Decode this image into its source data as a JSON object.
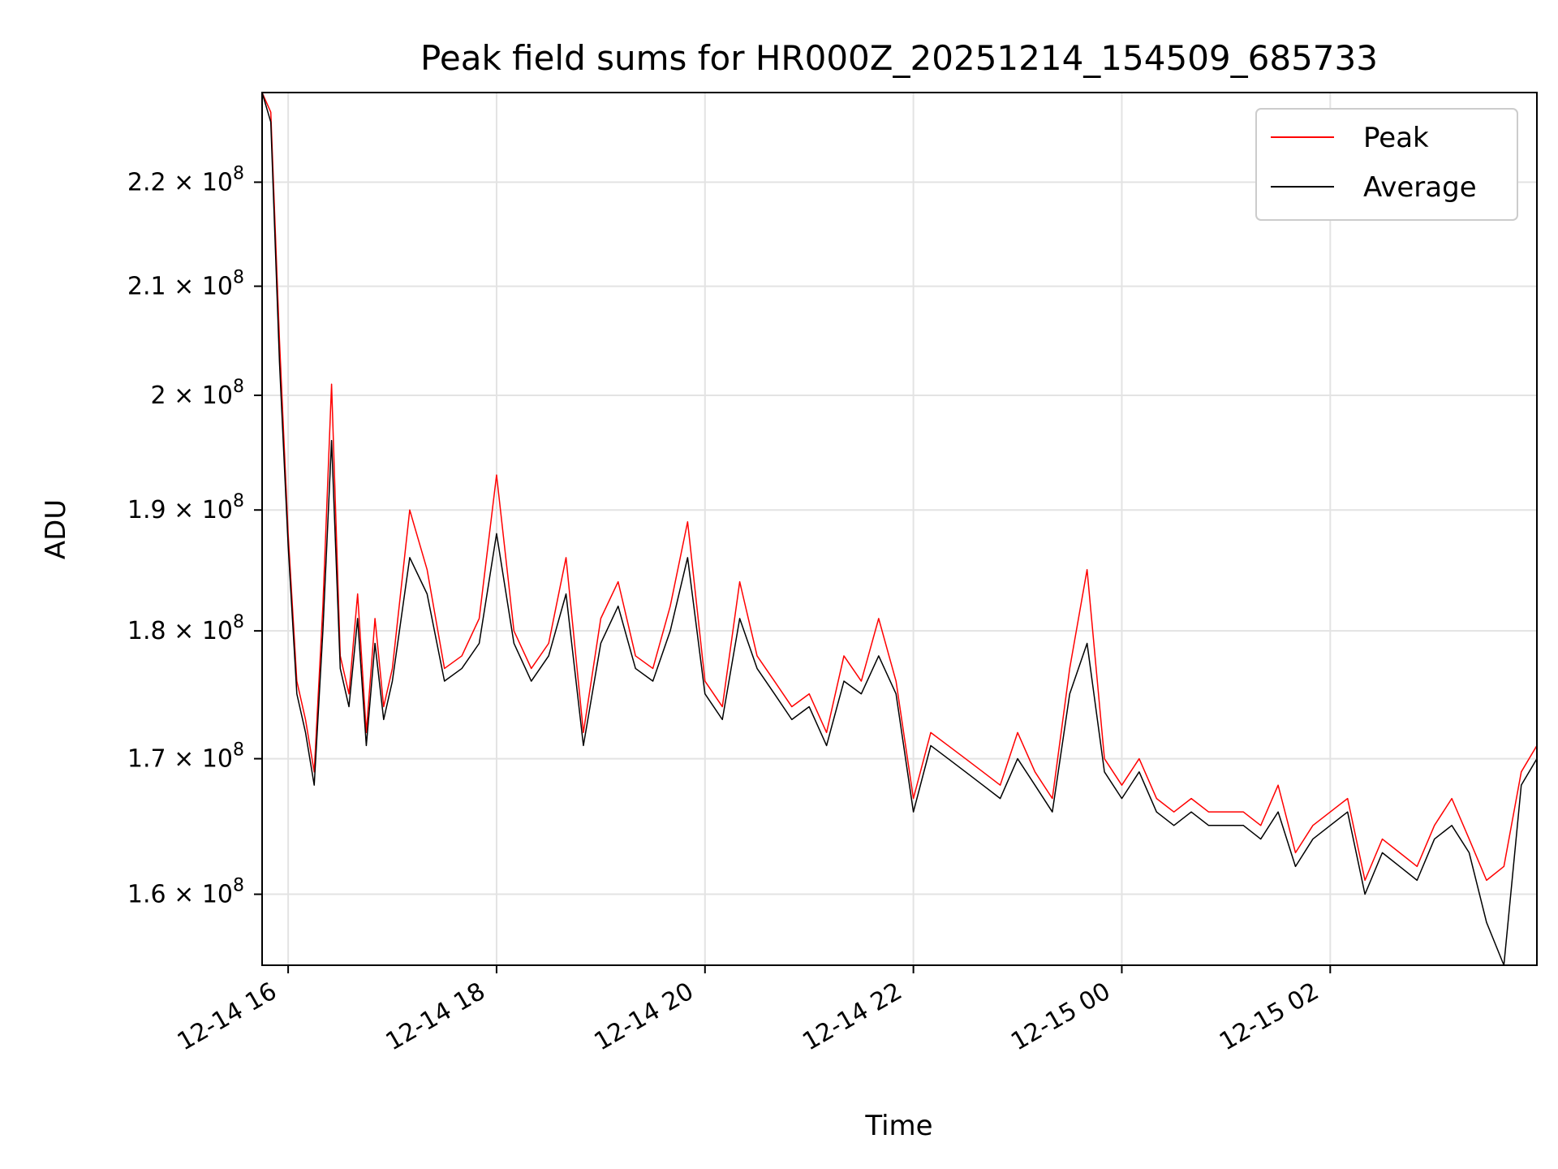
{
  "chart_data": {
    "type": "line",
    "title": "Peak field sums for HR000Z_20251214_154509_685733",
    "xlabel": "Time",
    "ylabel": "ADU",
    "x_axis": {
      "type": "time",
      "range": [
        "2025-12-14T15:45",
        "2025-12-15T03:59"
      ],
      "tick_values": [
        "2025-12-14T16:00",
        "2025-12-14T18:00",
        "2025-12-14T20:00",
        "2025-12-14T22:00",
        "2025-12-15T00:00",
        "2025-12-15T02:00"
      ],
      "tick_labels": [
        "12-14 16",
        "12-14 18",
        "12-14 20",
        "12-14 22",
        "12-15 00",
        "12-15 02"
      ]
    },
    "y_axis": {
      "scale": "log",
      "range": [
        155000000,
        229000000
      ],
      "tick_values": [
        160000000,
        170000000,
        180000000,
        190000000,
        200000000,
        210000000,
        220000000
      ],
      "tick_labels": [
        {
          "mantissa": "1.6",
          "base": "10",
          "exp": "8"
        },
        {
          "mantissa": "1.7",
          "base": "10",
          "exp": "8"
        },
        {
          "mantissa": "1.8",
          "base": "10",
          "exp": "8"
        },
        {
          "mantissa": "1.9",
          "base": "10",
          "exp": "8"
        },
        {
          "mantissa": "2",
          "base": "10",
          "exp": "8"
        },
        {
          "mantissa": "2.1",
          "base": "10",
          "exp": "8"
        },
        {
          "mantissa": "2.2",
          "base": "10",
          "exp": "8"
        }
      ]
    },
    "grid": true,
    "legend": {
      "position": "top-right",
      "entries": [
        "Peak",
        "Average"
      ]
    },
    "series": [
      {
        "name": "Peak",
        "color": "#ff0000",
        "x": [
          "2025-12-14T15:45",
          "2025-12-14T15:50",
          "2025-12-14T15:55",
          "2025-12-14T16:00",
          "2025-12-14T16:05",
          "2025-12-14T16:10",
          "2025-12-14T16:15",
          "2025-12-14T16:20",
          "2025-12-14T16:25",
          "2025-12-14T16:30",
          "2025-12-14T16:35",
          "2025-12-14T16:40",
          "2025-12-14T16:45",
          "2025-12-14T16:50",
          "2025-12-14T16:55",
          "2025-12-14T17:00",
          "2025-12-14T17:10",
          "2025-12-14T17:20",
          "2025-12-14T17:30",
          "2025-12-14T17:40",
          "2025-12-14T17:50",
          "2025-12-14T18:00",
          "2025-12-14T18:10",
          "2025-12-14T18:20",
          "2025-12-14T18:30",
          "2025-12-14T18:40",
          "2025-12-14T18:50",
          "2025-12-14T19:00",
          "2025-12-14T19:10",
          "2025-12-14T19:20",
          "2025-12-14T19:30",
          "2025-12-14T19:40",
          "2025-12-14T19:50",
          "2025-12-14T20:00",
          "2025-12-14T20:10",
          "2025-12-14T20:20",
          "2025-12-14T20:30",
          "2025-12-14T20:40",
          "2025-12-14T20:50",
          "2025-12-14T21:00",
          "2025-12-14T21:10",
          "2025-12-14T21:20",
          "2025-12-14T21:30",
          "2025-12-14T21:40",
          "2025-12-14T21:50",
          "2025-12-14T22:00",
          "2025-12-14T22:10",
          "2025-12-14T22:20",
          "2025-12-14T22:30",
          "2025-12-14T22:40",
          "2025-12-14T22:50",
          "2025-12-14T23:00",
          "2025-12-14T23:10",
          "2025-12-14T23:20",
          "2025-12-14T23:30",
          "2025-12-14T23:40",
          "2025-12-14T23:50",
          "2025-12-15T00:00",
          "2025-12-15T00:10",
          "2025-12-15T00:20",
          "2025-12-15T00:30",
          "2025-12-15T00:40",
          "2025-12-15T00:50",
          "2025-12-15T01:00",
          "2025-12-15T01:10",
          "2025-12-15T01:20",
          "2025-12-15T01:30",
          "2025-12-15T01:40",
          "2025-12-15T01:50",
          "2025-12-15T02:00",
          "2025-12-15T02:10",
          "2025-12-15T02:20",
          "2025-12-15T02:30",
          "2025-12-15T02:40",
          "2025-12-15T02:50",
          "2025-12-15T03:00",
          "2025-12-15T03:10",
          "2025-12-15T03:20",
          "2025-12-15T03:30",
          "2025-12-15T03:40",
          "2025-12-15T03:50",
          "2025-12-15T03:59"
        ],
        "y": [
          229000000,
          227000000,
          205000000,
          188000000,
          176000000,
          173000000,
          169000000,
          182000000,
          201000000,
          178000000,
          175000000,
          183000000,
          172000000,
          181000000,
          174000000,
          177000000,
          190000000,
          185000000,
          177000000,
          178000000,
          181000000,
          193000000,
          180000000,
          177000000,
          179000000,
          186000000,
          172000000,
          181000000,
          184000000,
          178000000,
          177000000,
          182000000,
          189000000,
          176000000,
          174000000,
          184000000,
          178000000,
          176000000,
          174000000,
          175000000,
          172000000,
          178000000,
          176000000,
          181000000,
          176000000,
          167000000,
          172000000,
          171000000,
          170000000,
          169000000,
          168000000,
          172000000,
          169000000,
          167000000,
          177000000,
          185000000,
          170000000,
          168000000,
          170000000,
          167000000,
          166000000,
          167000000,
          166000000,
          166000000,
          166000000,
          165000000,
          168000000,
          163000000,
          165000000,
          166000000,
          167000000,
          161000000,
          164000000,
          163000000,
          162000000,
          165000000,
          167000000,
          164000000,
          161000000,
          162000000,
          169000000,
          171000000
        ]
      },
      {
        "name": "Average",
        "color": "#000000",
        "x": [
          "2025-12-14T15:45",
          "2025-12-14T15:50",
          "2025-12-14T15:55",
          "2025-12-14T16:00",
          "2025-12-14T16:05",
          "2025-12-14T16:10",
          "2025-12-14T16:15",
          "2025-12-14T16:20",
          "2025-12-14T16:25",
          "2025-12-14T16:30",
          "2025-12-14T16:35",
          "2025-12-14T16:40",
          "2025-12-14T16:45",
          "2025-12-14T16:50",
          "2025-12-14T16:55",
          "2025-12-14T17:00",
          "2025-12-14T17:10",
          "2025-12-14T17:20",
          "2025-12-14T17:30",
          "2025-12-14T17:40",
          "2025-12-14T17:50",
          "2025-12-14T18:00",
          "2025-12-14T18:10",
          "2025-12-14T18:20",
          "2025-12-14T18:30",
          "2025-12-14T18:40",
          "2025-12-14T18:50",
          "2025-12-14T19:00",
          "2025-12-14T19:10",
          "2025-12-14T19:20",
          "2025-12-14T19:30",
          "2025-12-14T19:40",
          "2025-12-14T19:50",
          "2025-12-14T20:00",
          "2025-12-14T20:10",
          "2025-12-14T20:20",
          "2025-12-14T20:30",
          "2025-12-14T20:40",
          "2025-12-14T20:50",
          "2025-12-14T21:00",
          "2025-12-14T21:10",
          "2025-12-14T21:20",
          "2025-12-14T21:30",
          "2025-12-14T21:40",
          "2025-12-14T21:50",
          "2025-12-14T22:00",
          "2025-12-14T22:10",
          "2025-12-14T22:20",
          "2025-12-14T22:30",
          "2025-12-14T22:40",
          "2025-12-14T22:50",
          "2025-12-14T23:00",
          "2025-12-14T23:10",
          "2025-12-14T23:20",
          "2025-12-14T23:30",
          "2025-12-14T23:40",
          "2025-12-14T23:50",
          "2025-12-15T00:00",
          "2025-12-15T00:10",
          "2025-12-15T00:20",
          "2025-12-15T00:30",
          "2025-12-15T00:40",
          "2025-12-15T00:50",
          "2025-12-15T01:00",
          "2025-12-15T01:10",
          "2025-12-15T01:20",
          "2025-12-15T01:30",
          "2025-12-15T01:40",
          "2025-12-15T01:50",
          "2025-12-15T02:00",
          "2025-12-15T02:10",
          "2025-12-15T02:20",
          "2025-12-15T02:30",
          "2025-12-15T02:40",
          "2025-12-15T02:50",
          "2025-12-15T03:00",
          "2025-12-15T03:10",
          "2025-12-15T03:20",
          "2025-12-15T03:30",
          "2025-12-15T03:40",
          "2025-12-15T03:50",
          "2025-12-15T03:59"
        ],
        "y": [
          229000000,
          226000000,
          203000000,
          187000000,
          175000000,
          172000000,
          168000000,
          180000000,
          196000000,
          177000000,
          174000000,
          181000000,
          171000000,
          179000000,
          173000000,
          176000000,
          186000000,
          183000000,
          176000000,
          177000000,
          179000000,
          188000000,
          179000000,
          176000000,
          178000000,
          183000000,
          171000000,
          179000000,
          182000000,
          177000000,
          176000000,
          180000000,
          186000000,
          175000000,
          173000000,
          181000000,
          177000000,
          175000000,
          173000000,
          174000000,
          171000000,
          176000000,
          175000000,
          178000000,
          175000000,
          166000000,
          171000000,
          170000000,
          169000000,
          168000000,
          167000000,
          170000000,
          168000000,
          166000000,
          175000000,
          179000000,
          169000000,
          167000000,
          169000000,
          166000000,
          165000000,
          166000000,
          165000000,
          165000000,
          165000000,
          164000000,
          166000000,
          162000000,
          164000000,
          165000000,
          166000000,
          160000000,
          163000000,
          162000000,
          161000000,
          164000000,
          165000000,
          163000000,
          158000000,
          155000000,
          168000000,
          170000000
        ]
      }
    ]
  }
}
